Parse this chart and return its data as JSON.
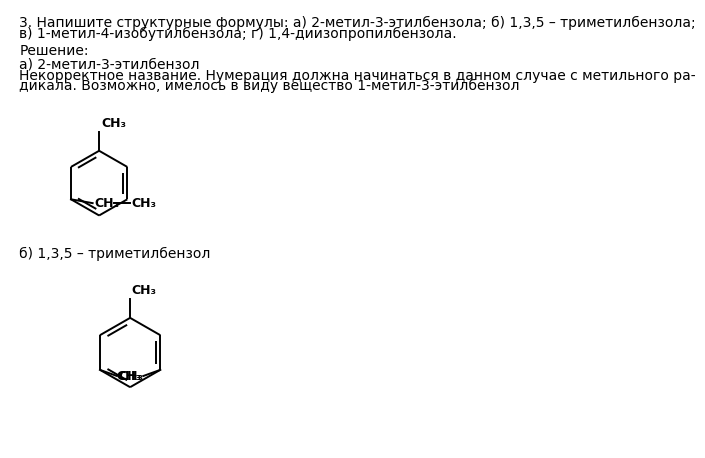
{
  "title_line1": "3. Напишите структурные формулы: а) 2-метил-3-этилбензола; б) 1,3,5 – триметилбензола;",
  "title_line2": "в) 1-метил-4-изобутилбензола; г) 1,4-диизопропилбензола.",
  "solution_text": "Решение:",
  "section_a_title": "а) 2-метил-3-этилбензол",
  "section_a_note1": "Некорректное название. Нумерация должна начинаться в данном случае с метильного ра-",
  "section_a_note2": "дикала. Возможно, имелось в виду вещество 1-метил-3-этилбензол",
  "section_b_title": "б) 1,3,5 – триметилбензол",
  "bg_color": "#ffffff",
  "text_color": "#000000",
  "line_color": "#000000",
  "line_width": 1.4,
  "font_size_body": 10.0,
  "font_size_chem": 9.0
}
